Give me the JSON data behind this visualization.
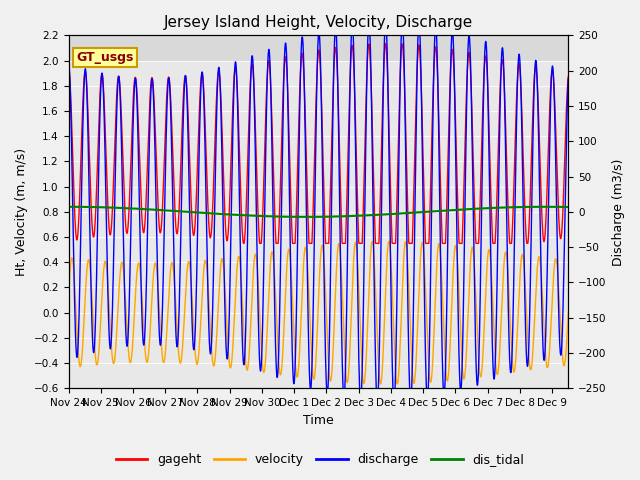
{
  "title": "Jersey Island Height, Velocity, Discharge",
  "xlabel": "Time",
  "ylabel_left": "Ht, Velocity (m, m/s)",
  "ylabel_right": "Discharge (m3/s)",
  "ylim_left": [
    -0.6,
    2.2
  ],
  "ylim_right": [
    -250,
    250
  ],
  "background_color": "#f0f0f0",
  "plot_bg_color": "#e8e8e8",
  "legend_label": "GT_usgs",
  "legend_bg": "#ffff99",
  "legend_border": "#cc9900",
  "legend_text_color": "#8b0000",
  "series_colors": {
    "gageht": "red",
    "velocity": "orange",
    "discharge": "blue",
    "dis_tidal": "green"
  },
  "xtick_labels": [
    "Nov 24",
    "Nov 25",
    "Nov 26",
    "Nov 27",
    "Nov 28",
    "Nov 29",
    "Nov 30",
    "Dec 1",
    "Dec 2",
    "Dec 3",
    "Dec 4",
    "Dec 5",
    "Dec 6",
    "Dec 7",
    "Dec 8",
    "Dec 9"
  ],
  "n_days": 15.5,
  "tidal_period_hours": 12.42,
  "title_fontsize": 11,
  "label_fontsize": 9,
  "tick_fontsize": 7.5,
  "legend_fontsize": 9,
  "gt_usgs_fontsize": 9
}
